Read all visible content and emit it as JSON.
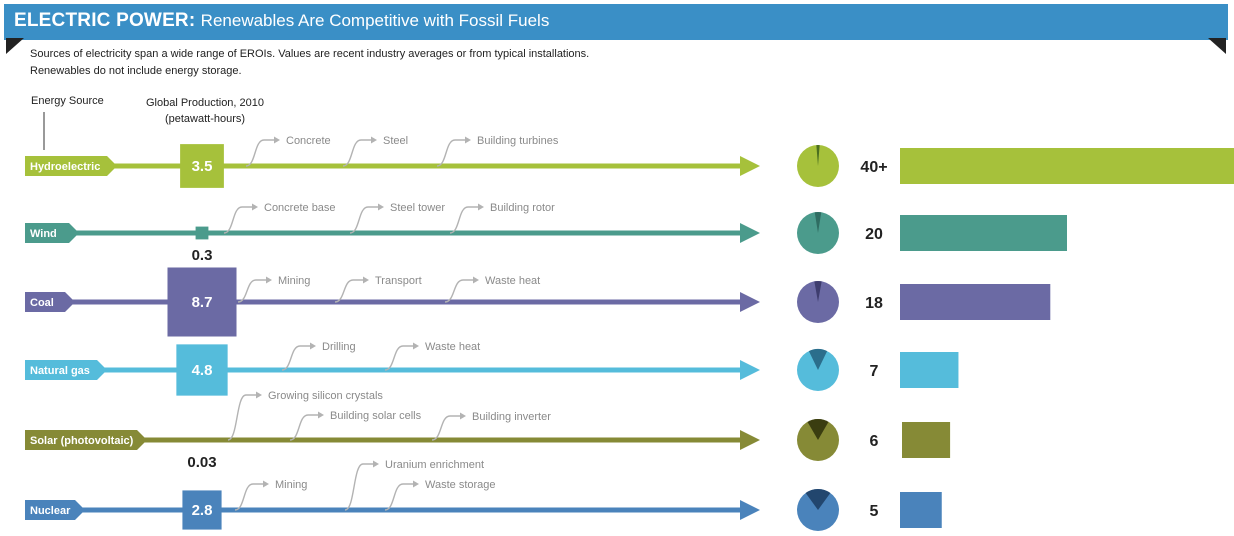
{
  "title": {
    "main": "ELECTRIC POWER:",
    "sub": "Renewables Are Competitive with Fossil Fuels"
  },
  "description": [
    "Sources of electricity span a wide range of EROIs. Values are recent industry averages or from typical installations.",
    "Renewables do not include energy storage."
  ],
  "headers": {
    "source": "Energy Source",
    "production_line1": "Global Production, 2010",
    "production_line2": "(petawatt-hours)"
  },
  "chart_data": {
    "type": "bar",
    "categories": [
      "Hydroelectric",
      "Wind",
      "Coal",
      "Natural gas",
      "Solar (photovoltaic)",
      "Nuclear"
    ],
    "eroi": [
      40,
      20,
      18,
      7,
      6,
      5
    ],
    "eroi_labels": [
      "40+",
      "20",
      "18",
      "7",
      "6",
      "5"
    ],
    "production": [
      3.5,
      0.3,
      8.7,
      4.8,
      0.03,
      2.8
    ],
    "production_labels": [
      "3.5",
      "0.3",
      "8.7",
      "4.8",
      "0.03",
      "2.8"
    ],
    "steps": [
      [
        "Concrete",
        "Steel",
        "Building turbines"
      ],
      [
        "Concrete base",
        "Steel tower",
        "Building rotor"
      ],
      [
        "Mining",
        "Transport",
        "Waste heat"
      ],
      [
        "Drilling",
        "Waste heat"
      ],
      [
        "Growing silicon crystals",
        "Building solar cells",
        "Building inverter"
      ],
      [
        "Mining",
        "Uranium enrichment",
        "Waste storage"
      ]
    ],
    "colors": [
      "#a6c13b",
      "#4b9b8c",
      "#6b6aa4",
      "#55bcdb",
      "#868a36",
      "#4a83bb"
    ],
    "pie_dark": [
      "#4a6e1f",
      "#2f6d62",
      "#3e3d6e",
      "#2b6e8c",
      "#3a3d10",
      "#22466e"
    ]
  }
}
